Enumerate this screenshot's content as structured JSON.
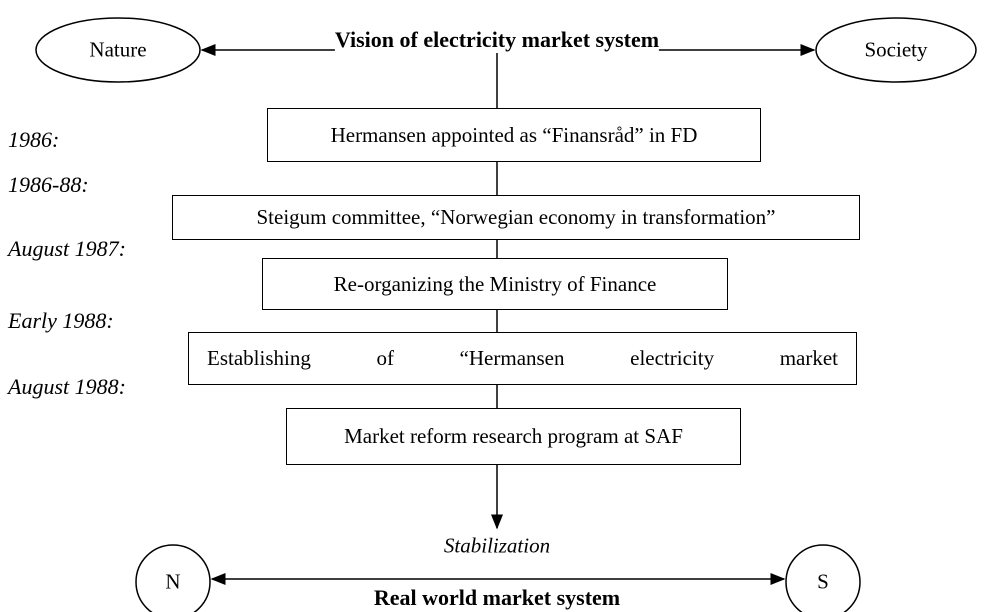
{
  "title": "Vision of electricity market system",
  "left_node": "Nature",
  "right_node": "Society",
  "steps": [
    {
      "date": "1986:",
      "label": "Hermansen appointed as “Finansråd” in FD"
    },
    {
      "date": "1986-88:",
      "label": "Steigum committee, “Norwegian economy in transformation”"
    },
    {
      "date": "August 1987:",
      "label": "Re-organizing the Ministry of Finance"
    },
    {
      "date": "Early 1988:",
      "label": "Establishing of “Hermansen electricity market"
    },
    {
      "date": "August 1988:",
      "label": "Market reform research program at SAF"
    }
  ],
  "outcome": "Stabilization",
  "bottom_left_node": "N",
  "bottom_right_node": "S",
  "bottom_title": "Real world market system"
}
